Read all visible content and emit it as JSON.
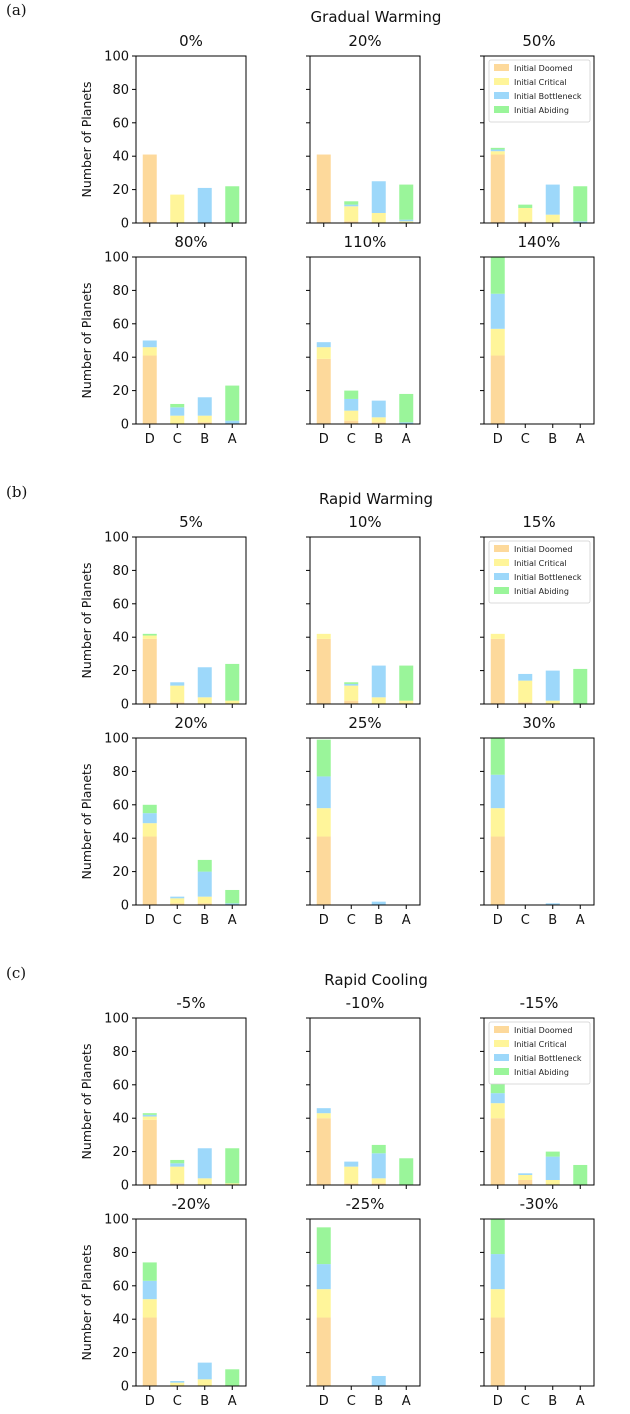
{
  "colors": {
    "Initial Doomed": "#fdd99b",
    "Initial Critical": "#fff59a",
    "Initial Bottleneck": "#9dd8fa",
    "Initial Abiding": "#9af59a"
  },
  "chart_data": [
    {
      "panel": "(a)",
      "title": "Gradual Warming",
      "type": "bar",
      "stacked": true,
      "categories": [
        "D",
        "C",
        "B",
        "A"
      ],
      "ylabel": "Number of Planets",
      "ylim": [
        0,
        100
      ],
      "yticks": [
        0,
        20,
        40,
        60,
        80,
        100
      ],
      "legend": [
        "Initial Doomed",
        "Initial Critical",
        "Initial Bottleneck",
        "Initial Abiding"
      ],
      "subplots": [
        {
          "title": "0%",
          "series": [
            {
              "name": "Initial Doomed",
              "values": [
                41,
                0,
                0,
                0
              ]
            },
            {
              "name": "Initial Critical",
              "values": [
                0,
                17,
                0,
                0
              ]
            },
            {
              "name": "Initial Bottleneck",
              "values": [
                0,
                0,
                21,
                0
              ]
            },
            {
              "name": "Initial Abiding",
              "values": [
                0,
                0,
                0,
                22
              ]
            }
          ]
        },
        {
          "title": "20%",
          "series": [
            {
              "name": "Initial Doomed",
              "values": [
                41,
                1,
                0,
                0
              ]
            },
            {
              "name": "Initial Critical",
              "values": [
                0,
                9,
                6,
                1
              ]
            },
            {
              "name": "Initial Bottleneck",
              "values": [
                0,
                1,
                19,
                1
              ]
            },
            {
              "name": "Initial Abiding",
              "values": [
                0,
                2,
                0,
                21
              ]
            }
          ]
        },
        {
          "title": "50%",
          "series": [
            {
              "name": "Initial Doomed",
              "values": [
                41,
                1,
                0,
                0
              ]
            },
            {
              "name": "Initial Critical",
              "values": [
                2,
                8,
                5,
                0
              ]
            },
            {
              "name": "Initial Bottleneck",
              "values": [
                1,
                0,
                18,
                1
              ]
            },
            {
              "name": "Initial Abiding",
              "values": [
                1,
                2,
                0,
                21
              ]
            }
          ]
        },
        {
          "title": "80%",
          "series": [
            {
              "name": "Initial Doomed",
              "values": [
                41,
                0,
                1,
                0
              ]
            },
            {
              "name": "Initial Critical",
              "values": [
                5,
                5,
                4,
                0
              ]
            },
            {
              "name": "Initial Bottleneck",
              "values": [
                4,
                5,
                11,
                2
              ]
            },
            {
              "name": "Initial Abiding",
              "values": [
                0,
                2,
                0,
                21
              ]
            }
          ]
        },
        {
          "title": "110%",
          "series": [
            {
              "name": "Initial Doomed",
              "values": [
                39,
                2,
                1,
                0
              ]
            },
            {
              "name": "Initial Critical",
              "values": [
                7,
                6,
                3,
                0
              ]
            },
            {
              "name": "Initial Bottleneck",
              "values": [
                3,
                7,
                10,
                1
              ]
            },
            {
              "name": "Initial Abiding",
              "values": [
                0,
                5,
                0,
                17
              ]
            }
          ]
        },
        {
          "title": "140%",
          "series": [
            {
              "name": "Initial Doomed",
              "values": [
                41,
                0,
                0,
                0
              ]
            },
            {
              "name": "Initial Critical",
              "values": [
                16,
                0,
                0,
                0
              ]
            },
            {
              "name": "Initial Bottleneck",
              "values": [
                21,
                0,
                0,
                0
              ]
            },
            {
              "name": "Initial Abiding",
              "values": [
                22,
                0,
                0,
                0
              ]
            }
          ]
        }
      ]
    },
    {
      "panel": "(b)",
      "title": "Rapid Warming",
      "type": "bar",
      "stacked": true,
      "categories": [
        "D",
        "C",
        "B",
        "A"
      ],
      "ylabel": "Number of Planets",
      "ylim": [
        0,
        100
      ],
      "yticks": [
        0,
        20,
        40,
        60,
        80,
        100
      ],
      "legend": [
        "Initial Doomed",
        "Initial Critical",
        "Initial Bottleneck",
        "Initial Abiding"
      ],
      "subplots": [
        {
          "title": "5%",
          "series": [
            {
              "name": "Initial Doomed",
              "values": [
                39,
                1,
                0,
                0
              ]
            },
            {
              "name": "Initial Critical",
              "values": [
                2,
                10,
                4,
                2
              ]
            },
            {
              "name": "Initial Bottleneck",
              "values": [
                0,
                2,
                18,
                0
              ]
            },
            {
              "name": "Initial Abiding",
              "values": [
                1,
                0,
                0,
                22
              ]
            }
          ]
        },
        {
          "title": "10%",
          "series": [
            {
              "name": "Initial Doomed",
              "values": [
                39,
                2,
                0,
                0
              ]
            },
            {
              "name": "Initial Critical",
              "values": [
                3,
                9,
                4,
                2
              ]
            },
            {
              "name": "Initial Bottleneck",
              "values": [
                0,
                1,
                19,
                0
              ]
            },
            {
              "name": "Initial Abiding",
              "values": [
                0,
                1,
                0,
                21
              ]
            }
          ]
        },
        {
          "title": "15%",
          "series": [
            {
              "name": "Initial Doomed",
              "values": [
                39,
                1,
                0,
                0
              ]
            },
            {
              "name": "Initial Critical",
              "values": [
                3,
                13,
                2,
                0
              ]
            },
            {
              "name": "Initial Bottleneck",
              "values": [
                0,
                4,
                18,
                0
              ]
            },
            {
              "name": "Initial Abiding",
              "values": [
                0,
                0,
                0,
                21
              ]
            }
          ]
        },
        {
          "title": "20%",
          "series": [
            {
              "name": "Initial Doomed",
              "values": [
                41,
                1,
                1,
                0
              ]
            },
            {
              "name": "Initial Critical",
              "values": [
                8,
                3,
                4,
                0
              ]
            },
            {
              "name": "Initial Bottleneck",
              "values": [
                6,
                1,
                15,
                1
              ]
            },
            {
              "name": "Initial Abiding",
              "values": [
                5,
                0,
                7,
                8
              ]
            }
          ]
        },
        {
          "title": "25%",
          "series": [
            {
              "name": "Initial Doomed",
              "values": [
                41,
                0,
                0,
                0
              ]
            },
            {
              "name": "Initial Critical",
              "values": [
                17,
                0,
                0,
                0
              ]
            },
            {
              "name": "Initial Bottleneck",
              "values": [
                19,
                0,
                2,
                0
              ]
            },
            {
              "name": "Initial Abiding",
              "values": [
                22,
                0,
                0,
                0
              ]
            }
          ]
        },
        {
          "title": "30%",
          "series": [
            {
              "name": "Initial Doomed",
              "values": [
                41,
                0,
                0,
                0
              ]
            },
            {
              "name": "Initial Critical",
              "values": [
                17,
                0,
                0,
                0
              ]
            },
            {
              "name": "Initial Bottleneck",
              "values": [
                20,
                0,
                1,
                0
              ]
            },
            {
              "name": "Initial Abiding",
              "values": [
                22,
                0,
                0,
                0
              ]
            }
          ]
        }
      ]
    },
    {
      "panel": "(c)",
      "title": "Rapid Cooling",
      "type": "bar",
      "stacked": true,
      "categories": [
        "D",
        "C",
        "B",
        "A"
      ],
      "ylabel": "Number of Planets",
      "ylim": [
        0,
        100
      ],
      "yticks": [
        0,
        20,
        40,
        60,
        80,
        100
      ],
      "legend": [
        "Initial Doomed",
        "Initial Critical",
        "Initial Bottleneck",
        "Initial Abiding"
      ],
      "subplots": [
        {
          "title": "-5%",
          "series": [
            {
              "name": "Initial Doomed",
              "values": [
                39,
                1,
                0,
                0
              ]
            },
            {
              "name": "Initial Critical",
              "values": [
                2,
                10,
                4,
                1
              ]
            },
            {
              "name": "Initial Bottleneck",
              "values": [
                1,
                2,
                18,
                0
              ]
            },
            {
              "name": "Initial Abiding",
              "values": [
                1,
                2,
                0,
                21
              ]
            }
          ]
        },
        {
          "title": "-10%",
          "series": [
            {
              "name": "Initial Doomed",
              "values": [
                40,
                1,
                1,
                0
              ]
            },
            {
              "name": "Initial Critical",
              "values": [
                3,
                10,
                3,
                0
              ]
            },
            {
              "name": "Initial Bottleneck",
              "values": [
                3,
                3,
                15,
                0
              ]
            },
            {
              "name": "Initial Abiding",
              "values": [
                0,
                0,
                5,
                16
              ]
            }
          ]
        },
        {
          "title": "-15%",
          "series": [
            {
              "name": "Initial Doomed",
              "values": [
                40,
                3,
                0,
                0
              ]
            },
            {
              "name": "Initial Critical",
              "values": [
                9,
                3,
                3,
                0
              ]
            },
            {
              "name": "Initial Bottleneck",
              "values": [
                6,
                1,
                14,
                0
              ]
            },
            {
              "name": "Initial Abiding",
              "values": [
                7,
                0,
                3,
                12
              ]
            }
          ]
        },
        {
          "title": "-20%",
          "series": [
            {
              "name": "Initial Doomed",
              "values": [
                41,
                0,
                0,
                0
              ]
            },
            {
              "name": "Initial Critical",
              "values": [
                11,
                2,
                4,
                0
              ]
            },
            {
              "name": "Initial Bottleneck",
              "values": [
                11,
                1,
                10,
                0
              ]
            },
            {
              "name": "Initial Abiding",
              "values": [
                11,
                0,
                0,
                10
              ]
            }
          ]
        },
        {
          "title": "-25%",
          "series": [
            {
              "name": "Initial Doomed",
              "values": [
                41,
                0,
                0,
                0
              ]
            },
            {
              "name": "Initial Critical",
              "values": [
                17,
                0,
                0,
                0
              ]
            },
            {
              "name": "Initial Bottleneck",
              "values": [
                15,
                0,
                6,
                0
              ]
            },
            {
              "name": "Initial Abiding",
              "values": [
                22,
                0,
                0,
                0
              ]
            }
          ]
        },
        {
          "title": "-30%",
          "series": [
            {
              "name": "Initial Doomed",
              "values": [
                41,
                0,
                0,
                0
              ]
            },
            {
              "name": "Initial Critical",
              "values": [
                17,
                0,
                0,
                0
              ]
            },
            {
              "name": "Initial Bottleneck",
              "values": [
                21,
                0,
                0,
                0
              ]
            },
            {
              "name": "Initial Abiding",
              "values": [
                21,
                0,
                0,
                0
              ]
            }
          ]
        }
      ]
    }
  ]
}
